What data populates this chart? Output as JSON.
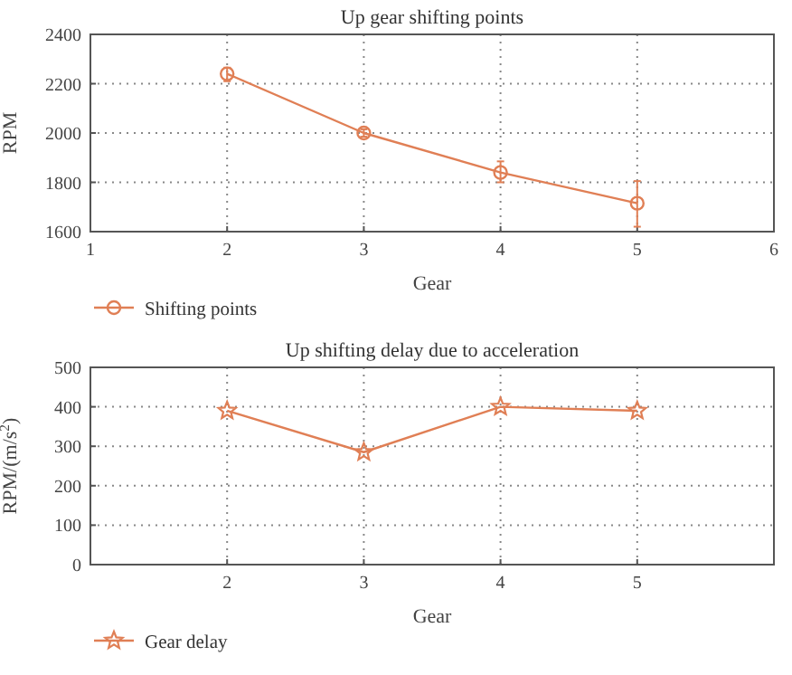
{
  "chart_data": [
    {
      "type": "line",
      "title": "Up gear shifting points",
      "xlabel": "Gear",
      "ylabel": "RPM",
      "x": [
        2,
        3,
        4,
        5
      ],
      "xlim": [
        1,
        6
      ],
      "xticks": [
        1,
        2,
        3,
        4,
        5,
        6
      ],
      "ylim": [
        1600,
        2400
      ],
      "yticks": [
        1600,
        1800,
        2000,
        2200,
        2400
      ],
      "grid": true,
      "legend": "bottom",
      "marker": "circle",
      "series": [
        {
          "name": "Shifting points",
          "color": "#e07f55",
          "values": [
            2240,
            2000,
            1840,
            1715
          ],
          "errors": [
            [
              2210,
              2265
            ],
            [
              1985,
              2015
            ],
            [
              1800,
              1885
            ],
            [
              1620,
              1805
            ]
          ]
        }
      ]
    },
    {
      "type": "line",
      "title": "Up shifting delay due to acceleration",
      "xlabel": "Gear",
      "ylabel": "RPM/(m/s$^{2}$)",
      "x": [
        2,
        3,
        4,
        5
      ],
      "xlim": [
        1,
        6
      ],
      "xticks": [
        2,
        3,
        4,
        5
      ],
      "ylim": [
        0,
        500
      ],
      "yticks": [
        0,
        100,
        200,
        300,
        400,
        500
      ],
      "grid": true,
      "legend": "bottom",
      "marker": "star",
      "series": [
        {
          "name": "Gear delay",
          "color": "#e07f55",
          "values": [
            390,
            285,
            400,
            390
          ]
        }
      ]
    }
  ]
}
